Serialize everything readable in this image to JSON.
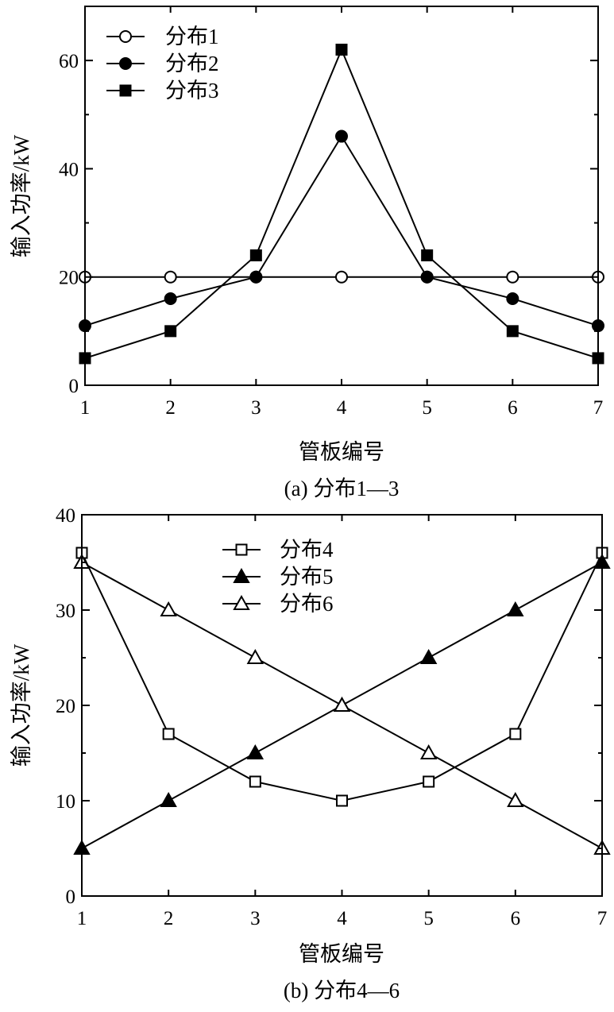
{
  "chart_data": [
    {
      "type": "line",
      "caption": "(a) 分布1—3",
      "xlabel": "管板编号",
      "ylabel": "输入功率/kW",
      "x": [
        1,
        2,
        3,
        4,
        5,
        6,
        7
      ],
      "xlim": [
        1,
        7
      ],
      "ylim": [
        0,
        70
      ],
      "yticks": [
        0,
        20,
        40,
        60
      ],
      "legend_position": "top-left",
      "series": [
        {
          "name": "分布1",
          "marker": "circle-open",
          "values": [
            20,
            20,
            20,
            20,
            20,
            20,
            20
          ]
        },
        {
          "name": "分布2",
          "marker": "circle-filled",
          "values": [
            11,
            16,
            20,
            46,
            20,
            16,
            11
          ]
        },
        {
          "name": "分布3",
          "marker": "square-filled",
          "values": [
            5,
            10,
            24,
            62,
            24,
            10,
            5
          ]
        }
      ]
    },
    {
      "type": "line",
      "caption": "(b) 分布4—6",
      "xlabel": "管板编号",
      "ylabel": "输入功率/kW",
      "x": [
        1,
        2,
        3,
        4,
        5,
        6,
        7
      ],
      "xlim": [
        1,
        7
      ],
      "ylim": [
        0,
        40
      ],
      "yticks": [
        0,
        10,
        20,
        30,
        40
      ],
      "legend_position": "top-center",
      "series": [
        {
          "name": "分布4",
          "marker": "square-open",
          "values": [
            36,
            17,
            12,
            10,
            12,
            17,
            36
          ]
        },
        {
          "name": "分布5",
          "marker": "triangle-filled",
          "values": [
            5,
            10,
            15,
            20,
            25,
            30,
            35
          ]
        },
        {
          "name": "分布6",
          "marker": "triangle-open",
          "values": [
            35,
            30,
            25,
            20,
            15,
            10,
            5
          ]
        }
      ]
    }
  ]
}
